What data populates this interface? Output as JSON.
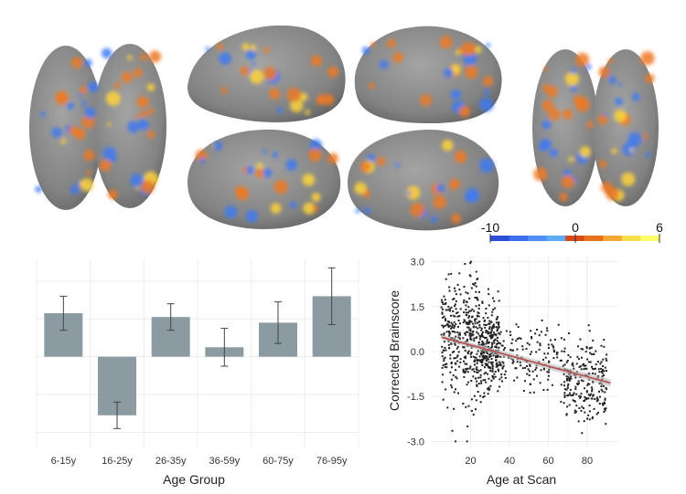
{
  "colorbar": {
    "min_label": "-10",
    "mid_label": "0",
    "max_label": "6",
    "colors": [
      "#2b4fd6",
      "#3f6ef0",
      "#4f8ff5",
      "#60aaf5",
      "#d94a1a",
      "#e8711f",
      "#f2a833",
      "#f8e04a",
      "#ffff66"
    ]
  },
  "brain_colors": {
    "surface": "#8a8a8a",
    "surface_dark": "#6f6f6f",
    "blue": "#3f7af0",
    "orange": "#ee7a24",
    "yellow": "#ffd43a"
  },
  "chart_data": [
    {
      "type": "bar",
      "xlabel": "Age Group",
      "ylabel": "",
      "categories": [
        "6-15y",
        "16-25y",
        "26-35y",
        "36-59y",
        "60-75y",
        "76-95y"
      ],
      "values": [
        1.15,
        -1.55,
        1.05,
        0.25,
        0.9,
        1.6
      ],
      "error": [
        0.45,
        0.35,
        0.35,
        0.5,
        0.55,
        0.75
      ],
      "ylim": [
        -2.4,
        2.6
      ],
      "bar_color": "#8c9aa1",
      "grid": true
    },
    {
      "type": "scatter",
      "xlabel": "Age at Scan",
      "ylabel": "Corrected Brainscore",
      "xticks": [
        20,
        40,
        60,
        80
      ],
      "yticks": [
        "3.0",
        "1.5",
        "0.0",
        "-1.5",
        "-3.0"
      ],
      "xlim": [
        0,
        96
      ],
      "ylim": [
        -3.2,
        3.2
      ],
      "trend": {
        "x": [
          5,
          92
        ],
        "y": [
          0.48,
          -1.05
        ],
        "color": "#b45454"
      },
      "point_color": "#222222",
      "clusters": [
        {
          "x_range": [
            5,
            15
          ],
          "y_center": 0.5,
          "y_sd": 0.9,
          "count": 170
        },
        {
          "x_range": [
            16,
            25
          ],
          "y_center": 0.35,
          "y_sd": 1.15,
          "count": 200
        },
        {
          "x_range": [
            25,
            35
          ],
          "y_center": 0.1,
          "y_sd": 0.7,
          "count": 260
        },
        {
          "x_range": [
            35,
            68
          ],
          "y_center": -0.2,
          "y_sd": 0.55,
          "count": 150
        },
        {
          "x_range": [
            68,
            90
          ],
          "y_center": -0.95,
          "y_sd": 0.75,
          "count": 230
        }
      ],
      "grid": true
    }
  ]
}
